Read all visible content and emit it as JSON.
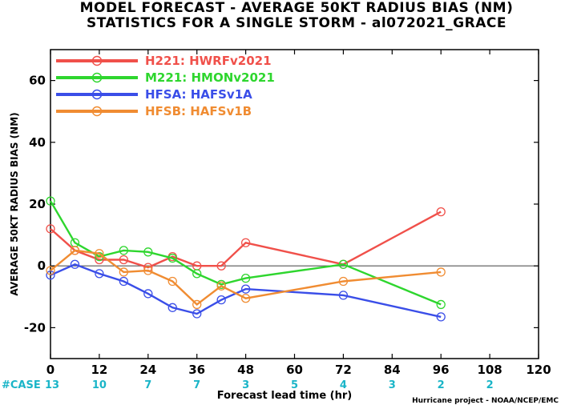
{
  "titles": {
    "line1": "MODEL FORECAST - AVERAGE 50KT RADIUS BIAS (NM)",
    "line2": "STATISTICS FOR A SINGLE STORM - al072021_GRACE"
  },
  "credit": "Hurricane project - NOAA/NCEP/EMC",
  "case_row": {
    "label": "#CASE",
    "x": [
      0,
      12,
      24,
      36,
      48,
      60,
      72,
      84,
      96,
      108
    ],
    "values": [
      "13",
      "10",
      "7",
      "7",
      "3",
      "5",
      "4",
      "3",
      "2",
      "2"
    ]
  },
  "chart_data": {
    "type": "line",
    "xlabel": "Forecast lead time (hr)",
    "ylabel": "AVERAGE 50KT RADIUS BIAS (NM)",
    "xlim": [
      0,
      120
    ],
    "ylim": [
      -30,
      70
    ],
    "xticks": [
      0,
      12,
      24,
      36,
      48,
      60,
      72,
      84,
      96,
      108,
      120
    ],
    "yticks": [
      -20,
      0,
      20,
      40,
      60
    ],
    "zero_line": true,
    "legend_position": "top-left",
    "series": [
      {
        "name": "H221: HWRFv2021",
        "color": "#f0504a",
        "x": [
          0,
          6,
          12,
          18,
          24,
          30,
          36,
          42,
          48,
          72,
          96
        ],
        "y": [
          12,
          5,
          2,
          2,
          -0.5,
          3,
          0,
          0,
          7.5,
          0.5,
          17.5
        ]
      },
      {
        "name": "M221: HMONv2021",
        "color": "#2ed62e",
        "x": [
          0,
          6,
          12,
          18,
          24,
          30,
          36,
          42,
          48,
          72,
          96
        ],
        "y": [
          21,
          7.5,
          3,
          5,
          4.5,
          2.5,
          -2.5,
          -6,
          -4,
          0.5,
          -12.5
        ]
      },
      {
        "name": "HFSA: HAFSv1A",
        "color": "#3a4ee8",
        "x": [
          0,
          6,
          12,
          18,
          24,
          30,
          36,
          42,
          48,
          72,
          96
        ],
        "y": [
          -3,
          0.5,
          -2.5,
          -5,
          -9,
          -13.5,
          -15.5,
          -11,
          -7.5,
          -9.5,
          -16.5
        ]
      },
      {
        "name": "HFSB: HAFSv1B",
        "color": "#f08c32",
        "x": [
          0,
          6,
          12,
          18,
          24,
          30,
          36,
          42,
          48,
          72,
          96
        ],
        "y": [
          -1.5,
          5,
          4,
          -2,
          -1.5,
          -5,
          -12.5,
          -6.5,
          -10.5,
          -5,
          -2
        ]
      }
    ]
  }
}
